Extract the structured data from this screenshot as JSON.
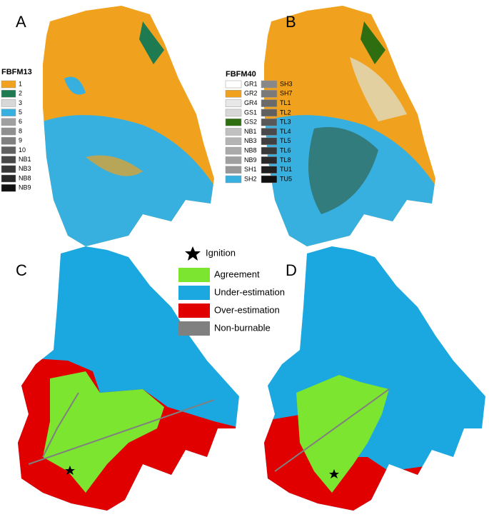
{
  "panels": [
    {
      "label": "A"
    },
    {
      "label": "B"
    },
    {
      "label": "C"
    },
    {
      "label": "D"
    }
  ],
  "legend_fbfm13": {
    "title": "FBFM13",
    "items": [
      {
        "label": "1",
        "color": "#f0a21e"
      },
      {
        "label": "2",
        "color": "#1e7a50"
      },
      {
        "label": "3",
        "color": "#d8d8d8"
      },
      {
        "label": "5",
        "color": "#37b0e0"
      },
      {
        "label": "6",
        "color": "#a0a0a0"
      },
      {
        "label": "8",
        "color": "#909090"
      },
      {
        "label": "9",
        "color": "#808080"
      },
      {
        "label": "10",
        "color": "#606060"
      },
      {
        "label": "NB1",
        "color": "#484848"
      },
      {
        "label": "NB3",
        "color": "#383838"
      },
      {
        "label": "NB8",
        "color": "#282828"
      },
      {
        "label": "NB9",
        "color": "#101010"
      }
    ]
  },
  "legend_fbfm40": {
    "title": "FBFM40",
    "items": [
      {
        "label": "GR1",
        "color": "#ffffff"
      },
      {
        "label": "GR2",
        "color": "#f0a21e"
      },
      {
        "label": "GR4",
        "color": "#e8e8e8"
      },
      {
        "label": "GS1",
        "color": "#d8d8d8"
      },
      {
        "label": "GS2",
        "color": "#2f6e10"
      },
      {
        "label": "NB1",
        "color": "#c0c0c0"
      },
      {
        "label": "NB3",
        "color": "#b4b4b4"
      },
      {
        "label": "NB8",
        "color": "#aaaaaa"
      },
      {
        "label": "NB9",
        "color": "#a0a0a0"
      },
      {
        "label": "SH1",
        "color": "#989898"
      },
      {
        "label": "SH2",
        "color": "#37b0e0"
      },
      {
        "label": "SH3",
        "color": "#888888"
      },
      {
        "label": "SH7",
        "color": "#7a7a7a"
      },
      {
        "label": "TL1",
        "color": "#6a6a6a"
      },
      {
        "label": "TL2",
        "color": "#606060"
      },
      {
        "label": "TL3",
        "color": "#585858"
      },
      {
        "label": "TL4",
        "color": "#4a4a4a"
      },
      {
        "label": "TL5",
        "color": "#404040"
      },
      {
        "label": "TL6",
        "color": "#383838"
      },
      {
        "label": "TL8",
        "color": "#2a2a2a"
      },
      {
        "label": "TU1",
        "color": "#202020"
      },
      {
        "label": "TU5",
        "color": "#101010"
      }
    ]
  },
  "legend_outcome": {
    "ignition": "Ignition",
    "items": [
      {
        "label": "Agreement",
        "color": "#7be52f"
      },
      {
        "label": "Under-estimation",
        "color": "#1ba8e0"
      },
      {
        "label": "Over-estimation",
        "color": "#e00000"
      },
      {
        "label": "Non-burnable",
        "color": "#808080"
      }
    ]
  }
}
